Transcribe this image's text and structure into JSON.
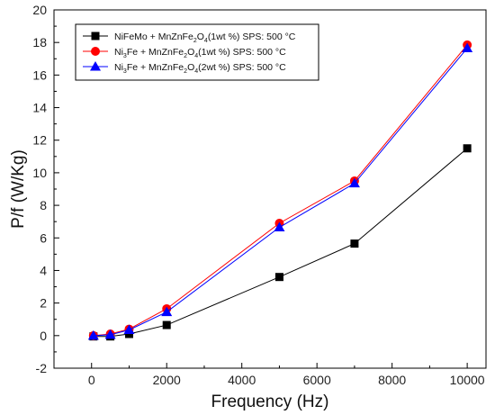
{
  "chart_data": {
    "type": "line",
    "xlabel": "Frequency (Hz)",
    "ylabel": "P/f (W/Kg)",
    "xlim": [
      -1000,
      10500
    ],
    "ylim": [
      -2,
      20
    ],
    "xticks": [
      0,
      2000,
      4000,
      6000,
      8000,
      10000
    ],
    "yticks": [
      -2,
      0,
      2,
      4,
      6,
      8,
      10,
      12,
      14,
      16,
      18,
      20
    ],
    "grid": false,
    "legend_position": "top-left",
    "x": [
      50,
      500,
      1000,
      2000,
      5000,
      7000,
      10000
    ],
    "series": [
      {
        "name": "NiFeMo + MnZnFe2O4(1wt %) SPS: 500 °C",
        "legend_parts": [
          {
            "t": "NiFeMo + MnZnFe",
            "s": false
          },
          {
            "t": "2",
            "s": true
          },
          {
            "t": "O",
            "s": false
          },
          {
            "t": "4",
            "s": true
          },
          {
            "t": "(1wt %) SPS: 500 °C",
            "s": false
          }
        ],
        "color": "#000000",
        "marker": "square",
        "values": [
          -0.05,
          -0.05,
          0.1,
          0.65,
          3.6,
          5.65,
          11.5
        ]
      },
      {
        "name": "Ni3Fe + MnZnFe2O4(1wt %) SPS: 500 °C",
        "legend_parts": [
          {
            "t": "Ni",
            "s": false
          },
          {
            "t": "3",
            "s": true
          },
          {
            "t": "Fe + MnZnFe",
            "s": false
          },
          {
            "t": "2",
            "s": true
          },
          {
            "t": "O",
            "s": false
          },
          {
            "t": "4",
            "s": true
          },
          {
            "t": "(1wt %) SPS: 500 °C",
            "s": false
          }
        ],
        "color": "#ff0000",
        "marker": "circle",
        "values": [
          0.0,
          0.1,
          0.4,
          1.65,
          6.9,
          9.5,
          17.85
        ]
      },
      {
        "name": "Ni3Fe + MnZnFe2O4(2wt %) SPS: 500 °C",
        "legend_parts": [
          {
            "t": "Ni",
            "s": false
          },
          {
            "t": "3",
            "s": true
          },
          {
            "t": "Fe + MnZnFe",
            "s": false
          },
          {
            "t": "2",
            "s": true
          },
          {
            "t": "O",
            "s": false
          },
          {
            "t": "4",
            "s": true
          },
          {
            "t": "(2wt %) SPS: 500 °C",
            "s": false
          }
        ],
        "color": "#0000ff",
        "marker": "triangle",
        "values": [
          0.0,
          0.05,
          0.35,
          1.45,
          6.65,
          9.35,
          17.65
        ]
      }
    ]
  }
}
